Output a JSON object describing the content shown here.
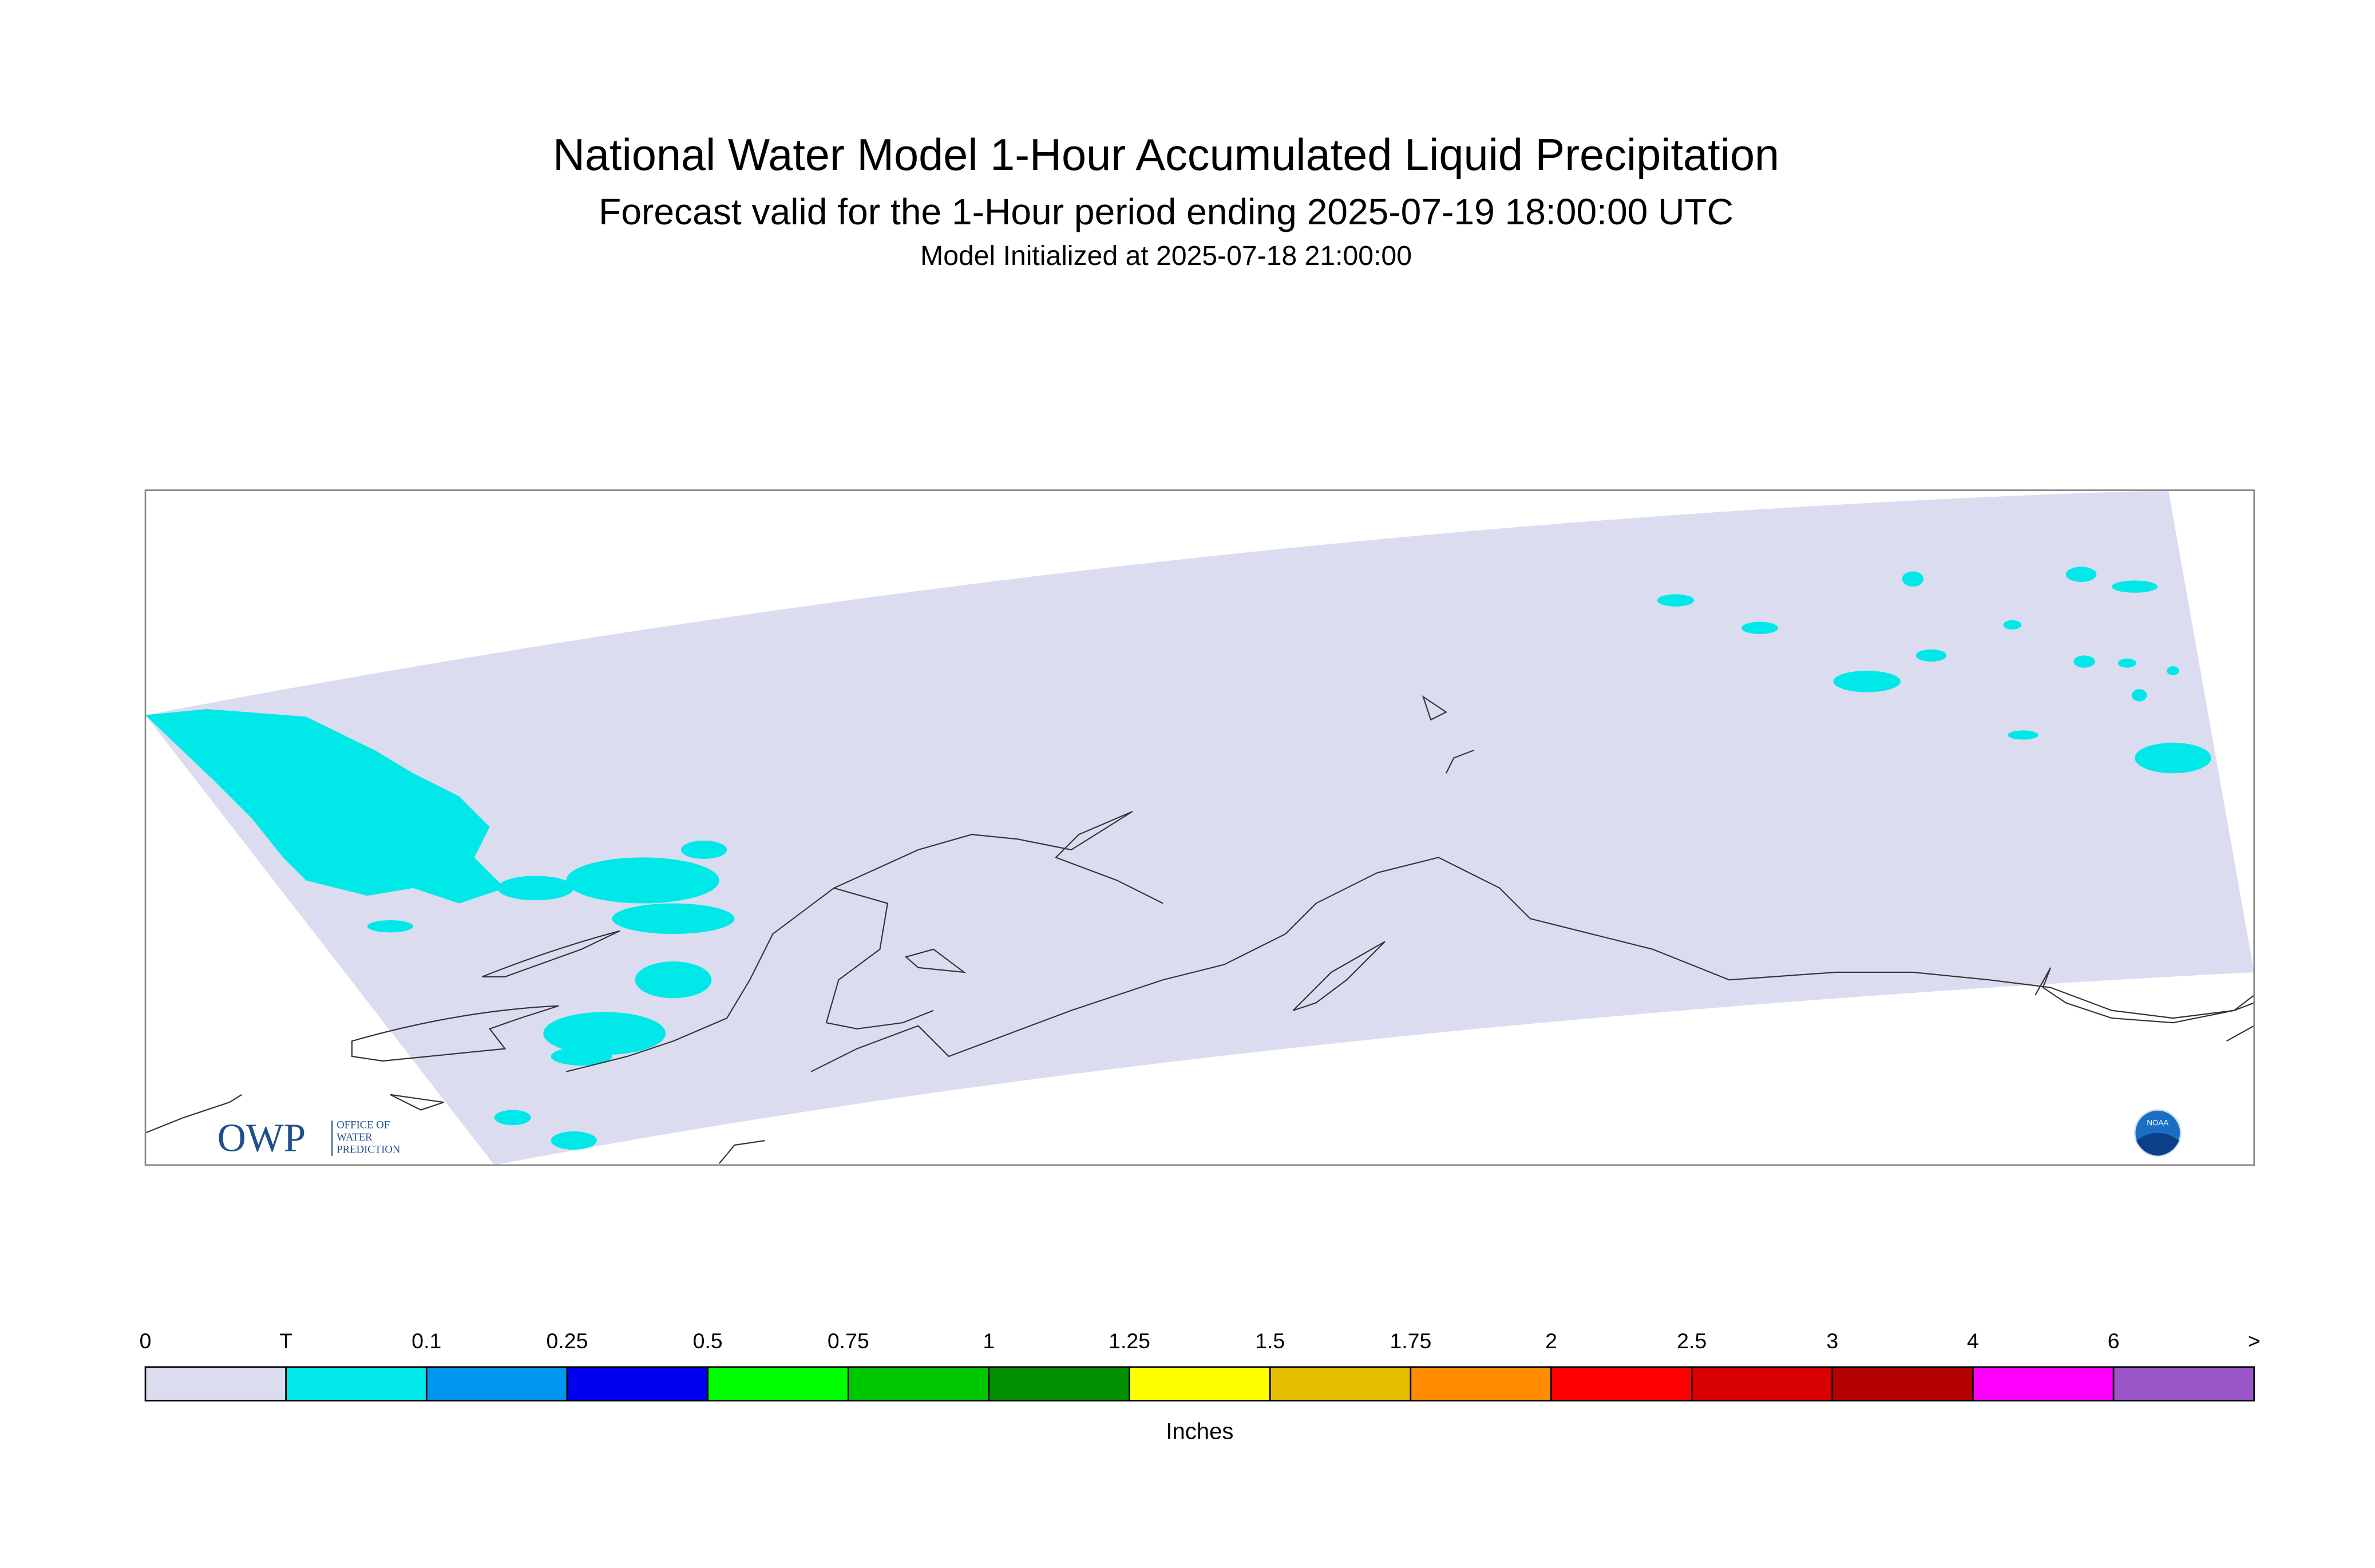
{
  "header": {
    "title": "National Water Model 1-Hour Accumulated Liquid Precipitation",
    "subtitle": "Forecast valid for the 1-Hour period ending 2025-07-19 18:00:00 UTC",
    "initialized": "Model Initialized at 2025-07-18 21:00:00"
  },
  "legend": {
    "labels": [
      "0",
      "T",
      "0.1",
      "0.25",
      "0.5",
      "0.75",
      "1",
      "1.25",
      "1.5",
      "1.75",
      "2",
      "2.5",
      "3",
      "4",
      "6",
      ">"
    ],
    "colors": [
      "#dcdcf0",
      "#00e8e8",
      "#0096f0",
      "#0000f0",
      "#00ff00",
      "#00c800",
      "#009000",
      "#ffff00",
      "#e6c000",
      "#ff8c00",
      "#ff0000",
      "#d80000",
      "#b40000",
      "#ff00ff",
      "#9955c8"
    ],
    "unit": "Inches"
  },
  "logos": {
    "owp": "OWP",
    "owp_lines": [
      "OFFICE OF",
      "WATER",
      "PREDICTION"
    ],
    "noaa": "NOAA"
  }
}
